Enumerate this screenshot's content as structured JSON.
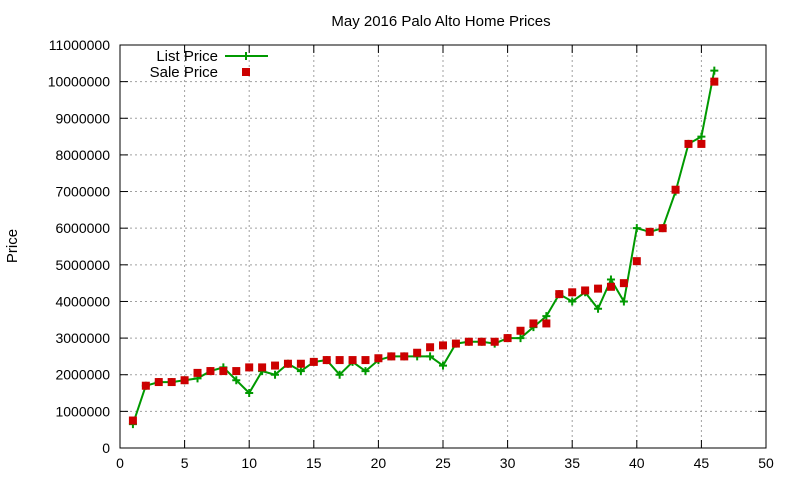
{
  "chart_data": {
    "type": "line",
    "title": "May 2016 Palo Alto Home Prices",
    "xlabel": "",
    "ylabel": "Price",
    "xlim": [
      0,
      50
    ],
    "ylim": [
      0,
      11000000
    ],
    "xticks": [
      0,
      5,
      10,
      15,
      20,
      25,
      30,
      35,
      40,
      45,
      50
    ],
    "yticks": [
      0,
      1000000,
      2000000,
      3000000,
      4000000,
      5000000,
      6000000,
      7000000,
      8000000,
      9000000,
      10000000,
      11000000
    ],
    "grid": true,
    "legend_position": "top-left",
    "x": [
      1,
      2,
      3,
      4,
      5,
      6,
      7,
      8,
      9,
      10,
      11,
      12,
      13,
      14,
      15,
      16,
      17,
      18,
      19,
      20,
      21,
      22,
      23,
      24,
      25,
      26,
      27,
      28,
      29,
      30,
      31,
      32,
      33,
      34,
      35,
      36,
      37,
      38,
      39,
      40,
      41,
      42,
      43,
      44,
      45,
      46
    ],
    "series": [
      {
        "name": "List Price",
        "style": "linespoints",
        "marker": "plus",
        "color": "#009900",
        "values": [
          650000,
          1700000,
          1800000,
          1800000,
          1850000,
          1900000,
          2100000,
          2200000,
          1850000,
          1500000,
          2100000,
          2000000,
          2300000,
          2100000,
          2350000,
          2400000,
          2000000,
          2350000,
          2100000,
          2400000,
          2500000,
          2500000,
          2500000,
          2500000,
          2250000,
          2850000,
          2900000,
          2900000,
          2850000,
          3000000,
          3000000,
          3300000,
          3600000,
          4200000,
          4000000,
          4250000,
          3800000,
          4600000,
          4000000,
          6000000,
          5900000,
          6000000,
          7000000,
          8300000,
          8500000,
          10300000
        ]
      },
      {
        "name": "Sale Price",
        "style": "points",
        "marker": "square",
        "color": "#cc0000",
        "values": [
          750000,
          1700000,
          1800000,
          1800000,
          1850000,
          2050000,
          2100000,
          2100000,
          2100000,
          2200000,
          2200000,
          2250000,
          2300000,
          2300000,
          2350000,
          2400000,
          2400000,
          2400000,
          2400000,
          2450000,
          2500000,
          2500000,
          2600000,
          2750000,
          2800000,
          2850000,
          2900000,
          2900000,
          2900000,
          3000000,
          3200000,
          3400000,
          3400000,
          4200000,
          4250000,
          4300000,
          4350000,
          4400000,
          4500000,
          5100000,
          5900000,
          6000000,
          7050000,
          8300000,
          8300000,
          10000000
        ]
      }
    ]
  }
}
